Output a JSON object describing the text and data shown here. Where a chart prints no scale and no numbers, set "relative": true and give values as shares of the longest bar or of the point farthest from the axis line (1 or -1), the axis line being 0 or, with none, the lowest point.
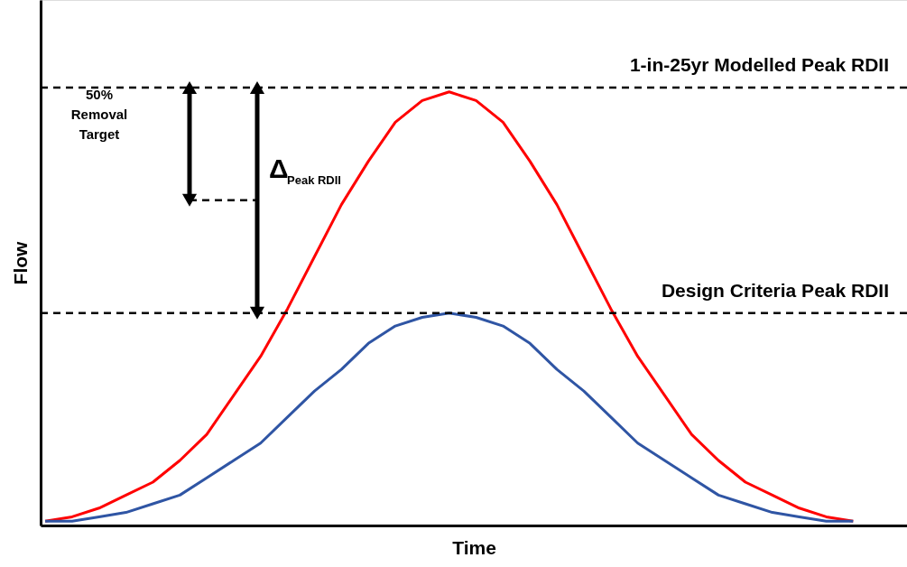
{
  "chart_data": {
    "type": "line",
    "relative": true,
    "xlabel": "Time",
    "ylabel": "Flow",
    "marker": "none",
    "line_style": "solid",
    "categories": [
      null,
      null,
      null,
      null,
      null,
      null,
      null,
      null,
      null,
      null,
      null,
      null,
      null,
      null,
      null,
      null,
      null,
      null,
      null,
      null,
      null,
      null,
      null,
      null,
      null,
      null,
      null,
      null,
      null,
      null,
      null
    ],
    "series": [
      {
        "color": "#ff0000",
        "values": [
          0.01,
          0.02,
          0.04,
          0.07,
          0.1,
          0.15,
          0.21,
          0.3,
          0.39,
          0.5,
          0.62,
          0.74,
          0.84,
          0.93,
          0.98,
          1.0,
          0.98,
          0.93,
          0.84,
          0.74,
          0.62,
          0.5,
          0.39,
          0.3,
          0.21,
          0.15,
          0.1,
          0.07,
          0.04,
          0.02,
          0.01
        ]
      },
      {
        "color": "#2f55a4",
        "values": [
          0.01,
          0.01,
          0.02,
          0.03,
          0.05,
          0.07,
          0.11,
          0.15,
          0.19,
          0.25,
          0.31,
          0.36,
          0.42,
          0.46,
          0.48,
          0.49,
          0.48,
          0.46,
          0.42,
          0.36,
          0.31,
          0.25,
          0.19,
          0.15,
          0.11,
          0.07,
          0.05,
          0.03,
          0.02,
          0.01,
          0.01
        ]
      }
    ],
    "ref_lines": [
      {
        "axis": "y",
        "value": 1.01,
        "label": "1-in-25yr Modelled Peak RDII",
        "color": "#000000",
        "line_style": "dashed"
      },
      {
        "axis": "y",
        "value": 0.49,
        "label": "Design Criteria Peak RDII",
        "color": "#000000",
        "line_style": "dashed"
      }
    ],
    "annotations": [
      "50% Removal Target",
      "Δ$_{Peak RDII}$"
    ]
  }
}
